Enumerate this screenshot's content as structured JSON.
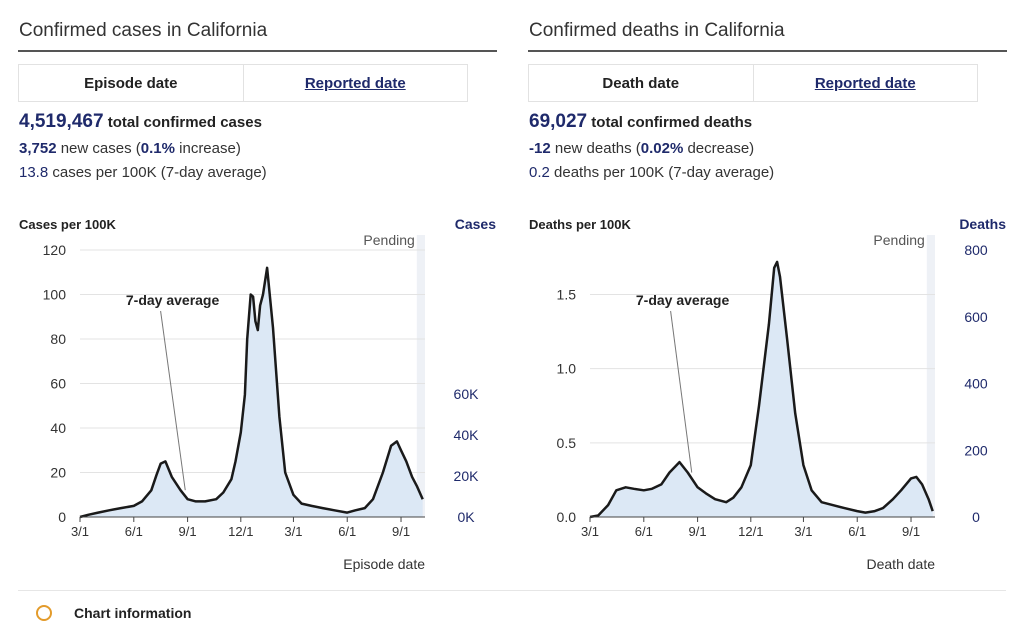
{
  "cases": {
    "title": "Confirmed cases in California",
    "tabs": [
      {
        "label": "Episode date"
      },
      {
        "label": "Reported date"
      }
    ],
    "total_value": "4,519,467",
    "total_label": "total confirmed cases",
    "new_value": "3,752",
    "new_label_a": "new cases (",
    "new_pct": "0.1%",
    "new_label_b": "increase)",
    "avg_value": "13.8",
    "avg_label": "cases per 100K (7-day average)"
  },
  "deaths": {
    "title": "Confirmed deaths in California",
    "tabs": [
      {
        "label": "Death date"
      },
      {
        "label": "Reported date"
      }
    ],
    "total_value": "69,027",
    "total_label": "total confirmed deaths",
    "new_value": "-12",
    "new_label_a": "new deaths (",
    "new_pct": "0.02%",
    "new_label_b": "decrease)",
    "avg_value": "0.2",
    "avg_label": "deaths per 100K (7-day average)"
  },
  "info_label": "Chart information",
  "colors": {
    "accent": "#1f2a6b",
    "area": "#dce8f5",
    "line": "#1a1a1a",
    "pending": "#eef1f6",
    "info": "#e39b2b"
  },
  "chart_data": [
    {
      "type": "area",
      "ylabel": "Cases per 100K",
      "y2label": "Cases",
      "xlabel": "Episode date",
      "annotation": "7-day average",
      "pending_label": "Pending",
      "ylim": [
        0,
        120
      ],
      "yticks": [
        0,
        20,
        40,
        60,
        80,
        100,
        120
      ],
      "y2lim": [
        0,
        120
      ],
      "y2ticks": [
        {
          "label": "0K",
          "value": 0
        },
        {
          "label": "20K",
          "value": 18.4
        },
        {
          "label": "40K",
          "value": 36.8
        },
        {
          "label": "60K",
          "value": 55.2
        }
      ],
      "xlim": [
        "2020-03-01",
        "2021-10-12"
      ],
      "xticks": [
        {
          "label": "3/1",
          "date": "2020-03-01"
        },
        {
          "label": "6/1",
          "date": "2020-06-01"
        },
        {
          "label": "9/1",
          "date": "2020-09-01"
        },
        {
          "label": "12/1",
          "date": "2020-12-01"
        },
        {
          "label": "3/1",
          "date": "2021-03-01"
        },
        {
          "label": "6/1",
          "date": "2021-06-01"
        },
        {
          "label": "9/1",
          "date": "2021-09-01"
        }
      ],
      "pending_start": "2021-09-28",
      "annotation_anchor": "2020-08-28",
      "series": [
        {
          "x": [
            "2020-03-01",
            "2020-03-15",
            "2020-04-01",
            "2020-04-20",
            "2020-05-10",
            "2020-06-01",
            "2020-06-15",
            "2020-07-01",
            "2020-07-10",
            "2020-07-17",
            "2020-07-25",
            "2020-08-05",
            "2020-08-20",
            "2020-09-01",
            "2020-09-15",
            "2020-10-01",
            "2020-10-20",
            "2020-11-01",
            "2020-11-15",
            "2020-11-22",
            "2020-12-01",
            "2020-12-08",
            "2020-12-12",
            "2020-12-18",
            "2020-12-22",
            "2020-12-26",
            "2020-12-30",
            "2021-01-03",
            "2021-01-08",
            "2021-01-15",
            "2021-01-25",
            "2021-02-05",
            "2021-02-15",
            "2021-03-01",
            "2021-03-15",
            "2021-04-01",
            "2021-04-20",
            "2021-05-10",
            "2021-06-01",
            "2021-06-15",
            "2021-07-01",
            "2021-07-15",
            "2021-08-01",
            "2021-08-15",
            "2021-08-25",
            "2021-09-01",
            "2021-09-10",
            "2021-09-20",
            "2021-09-28",
            "2021-10-08"
          ],
          "y": [
            0,
            1,
            2,
            3,
            4,
            5,
            7,
            12,
            19,
            24,
            25,
            18,
            12,
            8,
            7,
            7,
            8,
            11,
            17,
            25,
            38,
            55,
            80,
            100,
            99,
            88,
            84,
            95,
            100,
            112,
            85,
            45,
            20,
            10,
            6,
            5,
            4,
            3,
            2,
            3,
            4,
            8,
            20,
            32,
            34,
            30,
            25,
            18,
            14,
            8
          ]
        }
      ]
    },
    {
      "type": "area",
      "ylabel": "Deaths per 100K",
      "y2label": "Deaths",
      "xlabel": "Death date",
      "annotation": "7-day average",
      "pending_label": "Pending",
      "ylim": [
        0,
        1.8
      ],
      "yticks": [
        {
          "label": "0.0",
          "value": 0
        },
        {
          "label": "0.5",
          "value": 0.5
        },
        {
          "label": "1.0",
          "value": 1.0
        },
        {
          "label": "1.5",
          "value": 1.5
        }
      ],
      "y2lim": [
        0,
        1.8
      ],
      "y2ticks": [
        {
          "label": "0",
          "value": 0
        },
        {
          "label": "200",
          "value": 0.45
        },
        {
          "label": "400",
          "value": 0.9
        },
        {
          "label": "600",
          "value": 1.35
        },
        {
          "label": "800",
          "value": 1.8
        }
      ],
      "xlim": [
        "2020-03-01",
        "2021-10-12"
      ],
      "xticks": [
        {
          "label": "3/1",
          "date": "2020-03-01"
        },
        {
          "label": "6/1",
          "date": "2020-06-01"
        },
        {
          "label": "9/1",
          "date": "2020-09-01"
        },
        {
          "label": "12/1",
          "date": "2020-12-01"
        },
        {
          "label": "3/1",
          "date": "2021-03-01"
        },
        {
          "label": "6/1",
          "date": "2021-06-01"
        },
        {
          "label": "9/1",
          "date": "2021-09-01"
        }
      ],
      "pending_start": "2021-09-28",
      "annotation_anchor": "2020-08-22",
      "series": [
        {
          "x": [
            "2020-03-01",
            "2020-03-15",
            "2020-04-01",
            "2020-04-15",
            "2020-05-01",
            "2020-05-15",
            "2020-06-01",
            "2020-06-15",
            "2020-07-01",
            "2020-07-15",
            "2020-08-01",
            "2020-08-15",
            "2020-09-01",
            "2020-09-15",
            "2020-10-01",
            "2020-10-20",
            "2020-11-01",
            "2020-11-15",
            "2020-12-01",
            "2020-12-15",
            "2021-01-01",
            "2021-01-10",
            "2021-01-15",
            "2021-01-20",
            "2021-02-01",
            "2021-02-15",
            "2021-03-01",
            "2021-03-15",
            "2021-04-01",
            "2021-04-20",
            "2021-05-10",
            "2021-06-01",
            "2021-06-15",
            "2021-07-01",
            "2021-07-15",
            "2021-08-01",
            "2021-08-15",
            "2021-09-01",
            "2021-09-10",
            "2021-09-20",
            "2021-10-01",
            "2021-10-08"
          ],
          "y": [
            0,
            0.01,
            0.08,
            0.18,
            0.2,
            0.19,
            0.18,
            0.19,
            0.22,
            0.3,
            0.37,
            0.3,
            0.2,
            0.16,
            0.12,
            0.1,
            0.13,
            0.2,
            0.35,
            0.75,
            1.3,
            1.68,
            1.72,
            1.62,
            1.2,
            0.7,
            0.35,
            0.18,
            0.1,
            0.08,
            0.06,
            0.04,
            0.03,
            0.04,
            0.06,
            0.12,
            0.18,
            0.26,
            0.27,
            0.22,
            0.12,
            0.04
          ]
        }
      ]
    }
  ]
}
